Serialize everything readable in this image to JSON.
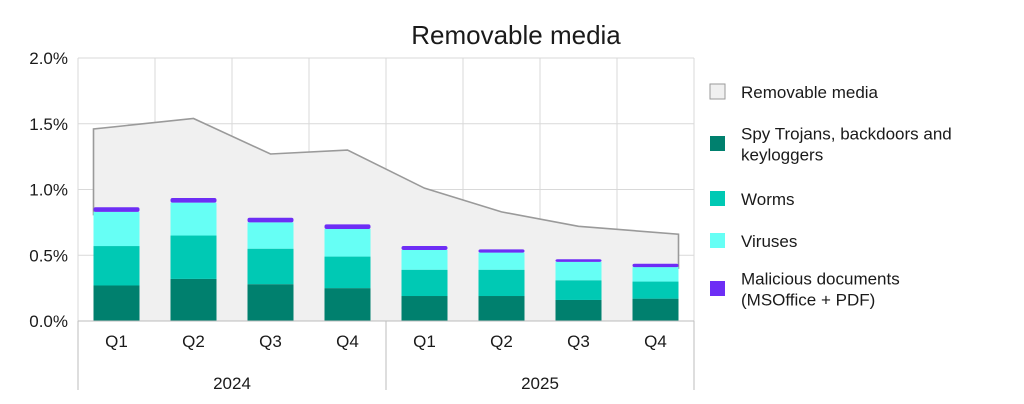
{
  "chart_data": {
    "type": "bar",
    "title": "Removable media",
    "y_axis": {
      "min": 0,
      "max": 2.0,
      "ticks": [
        0,
        0.5,
        1.0,
        1.5,
        2.0
      ],
      "tick_labels": [
        "0.0%",
        "0.5%",
        "1.0%",
        "1.5%",
        "2.0%"
      ]
    },
    "categories": [
      "Q1",
      "Q2",
      "Q3",
      "Q4",
      "Q1",
      "Q2",
      "Q3",
      "Q4"
    ],
    "groups": [
      {
        "label": "2024",
        "span": 4
      },
      {
        "label": "2025",
        "span": 4
      }
    ],
    "grid": true,
    "legend_position": "right",
    "series": [
      {
        "name": "Spy Trojans, backdoors and keyloggers",
        "kind": "stacked-bar",
        "color": "#00806e",
        "values": [
          0.27,
          0.32,
          0.28,
          0.25,
          0.19,
          0.19,
          0.16,
          0.17
        ]
      },
      {
        "name": "Worms",
        "kind": "stacked-bar",
        "color": "#00c9b4",
        "values": [
          0.3,
          0.33,
          0.27,
          0.24,
          0.2,
          0.2,
          0.15,
          0.13
        ]
      },
      {
        "name": "Viruses",
        "kind": "stacked-bar",
        "color": "#66fff5",
        "values": [
          0.26,
          0.25,
          0.2,
          0.21,
          0.15,
          0.13,
          0.14,
          0.11
        ]
      },
      {
        "name": "Malicious documents (MSOffice + PDF)",
        "kind": "stacked-bar",
        "color": "#6d2ef5",
        "values": [
          0.035,
          0.035,
          0.035,
          0.035,
          0.03,
          0.025,
          0.02,
          0.025
        ]
      },
      {
        "name": "Removable media",
        "kind": "area",
        "color": "#f0f0f0",
        "stroke": "#9a9a9a",
        "values": [
          1.46,
          1.54,
          1.27,
          1.3,
          1.01,
          0.83,
          0.72,
          0.66
        ]
      }
    ],
    "legend": [
      {
        "label": "Removable media",
        "color": "#f0f0f0",
        "border": "#9a9a9a",
        "lines": [
          "Removable media"
        ]
      },
      {
        "label": "Spy Trojans, backdoors and keyloggers",
        "color": "#00806e",
        "lines": [
          "Spy Trojans, backdoors and",
          "keyloggers"
        ]
      },
      {
        "label": "Worms",
        "color": "#00c9b4",
        "lines": [
          "Worms"
        ]
      },
      {
        "label": "Viruses",
        "color": "#66fff5",
        "lines": [
          "Viruses"
        ]
      },
      {
        "label": "Malicious documents (MSOffice + PDF)",
        "color": "#6d2ef5",
        "lines": [
          "Malicious documents",
          "(MSOffice + PDF)"
        ]
      }
    ]
  }
}
